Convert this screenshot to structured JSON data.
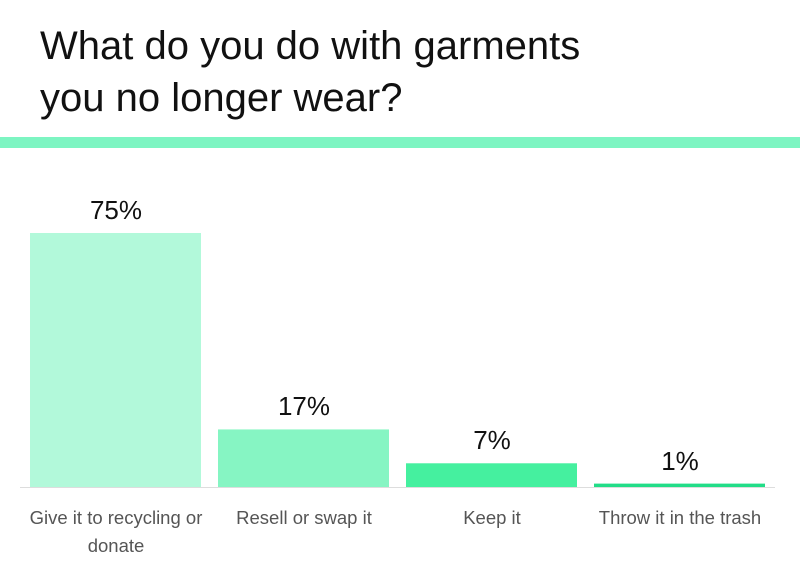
{
  "chart_data": {
    "type": "bar",
    "title": "What do you do with garments you no longer wear?",
    "categories": [
      "Give it to recycling or donate",
      "Resell or swap it",
      "Keep it",
      "Throw it in the trash"
    ],
    "values": [
      75,
      17,
      7,
      1
    ],
    "value_labels": [
      "75%",
      "17%",
      "7%",
      "1%"
    ],
    "colors": [
      "#b2f9da",
      "#86f5c3",
      "#45f09f",
      "#22dd88"
    ]
  }
}
